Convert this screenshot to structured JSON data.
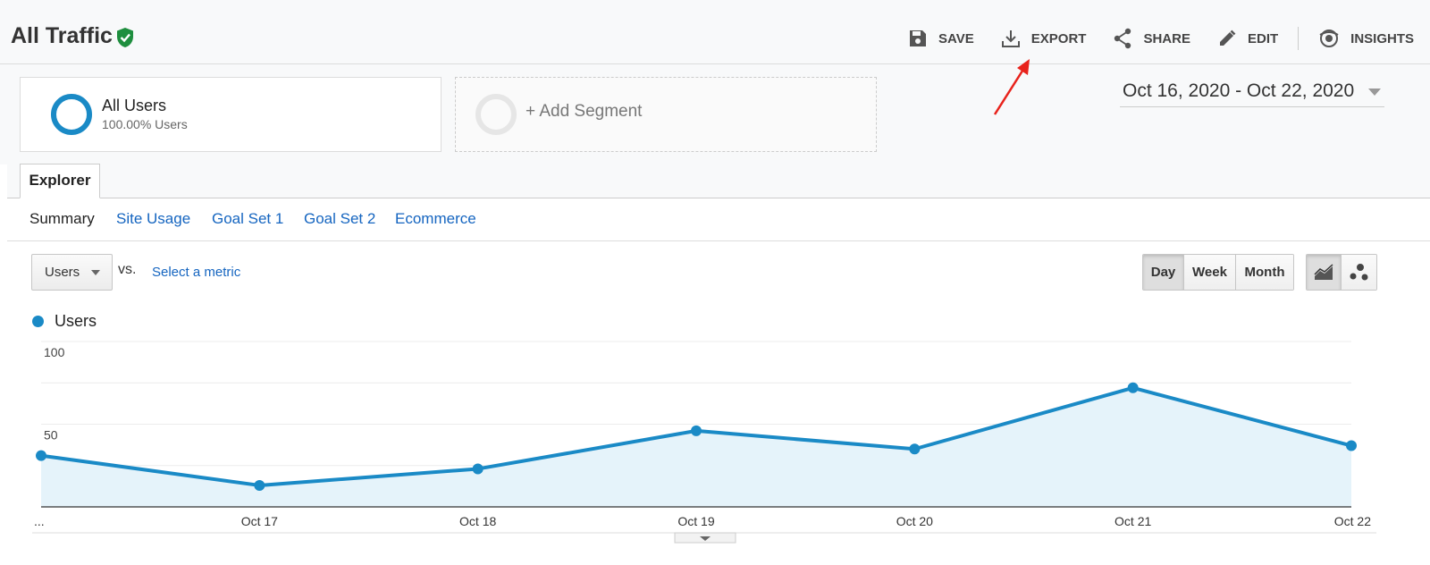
{
  "header": {
    "title": "All Traffic",
    "actions": {
      "save": "SAVE",
      "export": "EXPORT",
      "share": "SHARE",
      "edit": "EDIT",
      "insights": "INSIGHTS"
    }
  },
  "segments": {
    "segment1": {
      "name": "All Users",
      "sub": "100.00% Users"
    },
    "add_segment": "+ Add Segment"
  },
  "date_range": "Oct 16, 2020 - Oct 22, 2020",
  "tabs": {
    "explorer": "Explorer"
  },
  "subnav": {
    "summary": "Summary",
    "site_usage": "Site Usage",
    "goal_set_1": "Goal Set 1",
    "goal_set_2": "Goal Set 2",
    "ecommerce": "Ecommerce"
  },
  "controls": {
    "metric": "Users",
    "vs": "vs.",
    "select_metric": "Select a metric",
    "periods": [
      "Day",
      "Week",
      "Month"
    ],
    "active_period": "Day"
  },
  "colors": {
    "series": "#1a8ac6",
    "area": "#e5f3fa",
    "link": "#1565c0",
    "verified": "#1e8e3e",
    "annotation": "#e8221b"
  },
  "icons": {
    "save": "floppy-disk-icon",
    "export": "download-icon",
    "share": "share-icon",
    "edit": "pencil-icon",
    "insights": "insights-icon"
  },
  "chart_data": {
    "type": "area",
    "series": [
      {
        "name": "Users",
        "values": [
          31,
          13,
          23,
          46,
          35,
          72,
          37
        ]
      }
    ],
    "x_tick_labels": [
      "...",
      "Oct 17",
      "Oct 18",
      "Oct 19",
      "Oct 20",
      "Oct 21",
      "Oct 22"
    ],
    "y_tick_labels": [
      "100",
      "50"
    ],
    "ylim": [
      0,
      100
    ],
    "grid": true,
    "legend": "top-left"
  }
}
